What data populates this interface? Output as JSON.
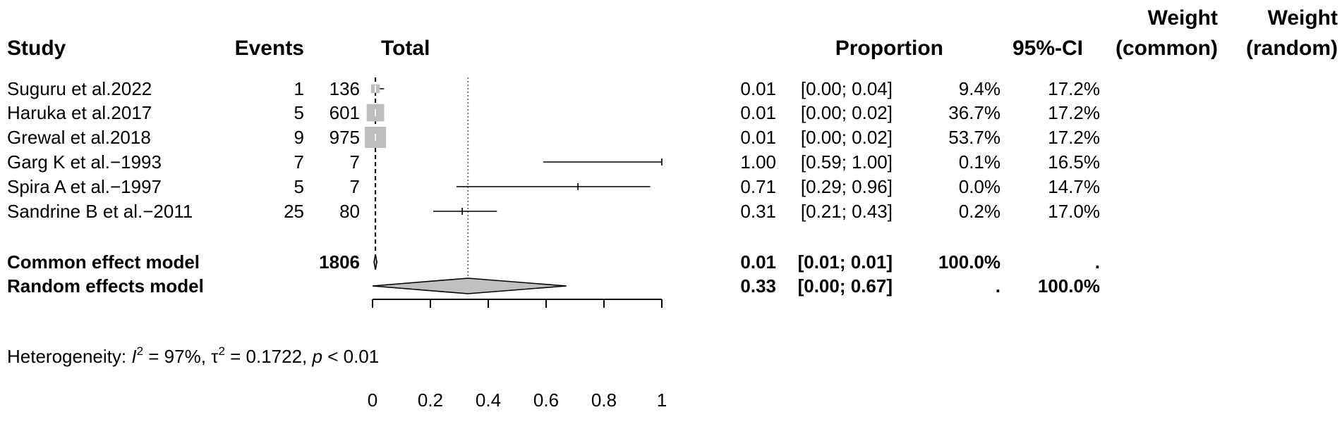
{
  "header": {
    "study": "Study",
    "events": "Events",
    "total": "Total",
    "proportion": "Proportion",
    "ci": "95%-CI",
    "weight_common_line1": "Weight",
    "weight_common_line2": "(common)",
    "weight_random_line1": "Weight",
    "weight_random_line2": "(random)"
  },
  "heterogeneity": {
    "prefix": "Heterogeneity: ",
    "i2_symbol": "I",
    "i2_value": " = 97%, ",
    "tau_symbol": "τ",
    "tau_value": " = 0.1722, ",
    "p_symbol": "p",
    "p_value": " < 0.01",
    "superscript": "2"
  },
  "chart_data": {
    "type": "forest",
    "xlim": [
      0,
      1
    ],
    "ticks": [
      "0",
      "0.2",
      "0.4",
      "0.6",
      "0.8",
      "1"
    ],
    "tick_values": [
      0,
      0.2,
      0.4,
      0.6,
      0.8,
      1
    ],
    "random_effect_line": 0.33,
    "common_effect_line": 0.01,
    "studies": [
      {
        "study": "Suguru et al.2022",
        "events": "1",
        "total": "136",
        "proportion": 0.01,
        "lower": 0.0,
        "upper": 0.04,
        "prop_label": "0.01",
        "ci_label": "[0.00; 0.04]",
        "w_common": "9.4%",
        "w_random": "17.2%",
        "w_common_value": 9.4
      },
      {
        "study": "Haruka  et al.2017",
        "events": "5",
        "total": "601",
        "proportion": 0.01,
        "lower": 0.0,
        "upper": 0.02,
        "prop_label": "0.01",
        "ci_label": "[0.00; 0.02]",
        "w_common": "36.7%",
        "w_random": "17.2%",
        "w_common_value": 36.7
      },
      {
        "study": "Grewal et al.2018",
        "events": "9",
        "total": "975",
        "proportion": 0.01,
        "lower": 0.0,
        "upper": 0.02,
        "prop_label": "0.01",
        "ci_label": "[0.00; 0.02]",
        "w_common": "53.7%",
        "w_random": "17.2%",
        "w_common_value": 53.7
      },
      {
        "study": "Garg K et al.−1993",
        "events": "7",
        "total": "7",
        "proportion": 1.0,
        "lower": 0.59,
        "upper": 1.0,
        "prop_label": "1.00",
        "ci_label": "[0.59; 1.00]",
        "w_common": "0.1%",
        "w_random": "16.5%",
        "w_common_value": 0.1
      },
      {
        "study": "Spira A et al.−1997",
        "events": "5",
        "total": "7",
        "proportion": 0.71,
        "lower": 0.29,
        "upper": 0.96,
        "prop_label": "0.71",
        "ci_label": "[0.29; 0.96]",
        "w_common": "0.0%",
        "w_random": "14.7%",
        "w_common_value": 0.0
      },
      {
        "study": "Sandrine B et al.−2011",
        "events": "25",
        "total": "80",
        "proportion": 0.31,
        "lower": 0.21,
        "upper": 0.43,
        "prop_label": "0.31",
        "ci_label": "[0.21; 0.43]",
        "w_common": "0.2%",
        "w_random": "17.0%",
        "w_common_value": 0.2
      }
    ],
    "summaries": [
      {
        "label": "Common effect model",
        "total": "1806",
        "estimate": 0.01,
        "lower": 0.01,
        "upper": 0.01,
        "prop_label": "0.01",
        "ci_label": "[0.01; 0.01]",
        "w_common": "100.0%",
        "w_random": "."
      },
      {
        "label": "Random effects model",
        "total": "",
        "estimate": 0.33,
        "lower": 0.0,
        "upper": 0.67,
        "prop_label": "0.33",
        "ci_label": "[0.00; 0.67]",
        "w_common": ".",
        "w_random": "100.0%"
      }
    ],
    "colors": {
      "square": "#bebebe",
      "diamond": "#c0c0c0",
      "line": "#000000",
      "white_tick": "#ffffff"
    }
  }
}
